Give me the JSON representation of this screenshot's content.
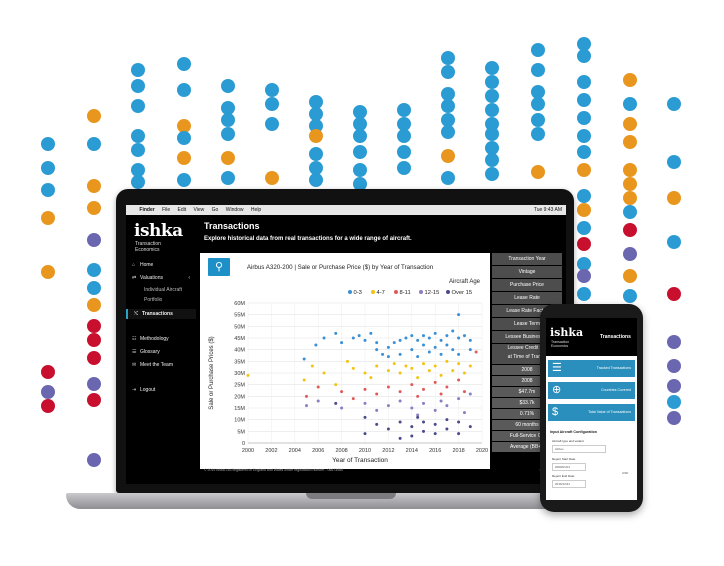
{
  "colors": {
    "age_0_3": "#3b8fd4",
    "age_4_7": "#f2c40f",
    "age_8_11": "#e05a5a",
    "age_12_15": "#8e7cc3",
    "age_over_15": "#4a4a8c",
    "accent": "#2aa3c7",
    "dot_blue": "#2b9bd3",
    "dot_orange": "#e8961e",
    "dot_red": "#c8102e",
    "dot_purple": "#6a67b0"
  },
  "menubar": {
    "apple": "",
    "items": [
      "Finder",
      "File",
      "Edit",
      "View",
      "Go",
      "Window",
      "Help"
    ],
    "clock": "Tue 9:43 AM"
  },
  "sidebar": {
    "logo": "ishka",
    "logo_sub1": "Transaction",
    "logo_sub2": "Economics",
    "items": [
      {
        "label": "Home",
        "icon": "home-icon",
        "glyph": "⌂"
      },
      {
        "label": "Valuations",
        "icon": "valuations-icon",
        "glyph": "⇄",
        "chevron": "‹"
      },
      {
        "label": "Individual Aircraft",
        "sub": true
      },
      {
        "label": "Portfolio",
        "sub": true
      },
      {
        "label": "Transactions",
        "icon": "transactions-icon",
        "glyph": "⤭",
        "active": true
      },
      {
        "label": "Methodology",
        "icon": "methodology-icon",
        "glyph": "☷"
      },
      {
        "label": "Glossary",
        "icon": "glossary-icon",
        "glyph": "☰"
      },
      {
        "label": "Meet the Team",
        "icon": "team-icon",
        "glyph": "✉"
      },
      {
        "label": "Logout",
        "icon": "logout-icon",
        "glyph": "⇥"
      }
    ]
  },
  "page": {
    "title": "Transactions",
    "subtitle": "Explore historical data from real transactions for a wide range of aircraft.",
    "search_glyph": "⚲"
  },
  "filters": [
    "Transaction Year",
    "Vintage",
    "Purchase Price",
    "Lease Rate",
    "Lease Rate Factor",
    "Lease Term",
    "Lessee Business M",
    "Lessee Credit Gu",
    "at Time of Transa"
  ],
  "filter_values": [
    "2008",
    "2008",
    "$47.7m",
    "$33.7k",
    "0.71%",
    "60 months",
    "Full-Service Ca",
    "Average (BB+ t"
  ],
  "footer": {
    "left": "© 2019 Ishka Ltd Registered in England and Wales under registration number - 06673080",
    "right": "staging.ishk"
  },
  "chart_data": {
    "type": "scatter",
    "title": "Airbus A320-200 | Sale or Purchase Price ($) by Year of Transaction",
    "xlabel": "Year of Transaction",
    "ylabel": "Sale or Purchase Prices ($)",
    "xlim": [
      2000,
      2020
    ],
    "ylim": [
      0,
      60
    ],
    "x_ticks": [
      "2000",
      "2002",
      "2004",
      "2006",
      "2008",
      "2010",
      "2012",
      "2014",
      "2016",
      "2018",
      "2020"
    ],
    "y_ticks": [
      "0",
      "5M",
      "10M",
      "15M",
      "20M",
      "25M",
      "30M",
      "35M",
      "40M",
      "45M",
      "50M",
      "55M",
      "60M"
    ],
    "legend_title": "Aircraft Age",
    "legend_position": "top-right",
    "grid": true,
    "series": [
      {
        "name": "0-3",
        "color": "#3b8fd4",
        "points": [
          [
            2004.8,
            36
          ],
          [
            2005.8,
            42
          ],
          [
            2006.5,
            45
          ],
          [
            2007.5,
            47
          ],
          [
            2008,
            43
          ],
          [
            2009,
            45
          ],
          [
            2009.5,
            46
          ],
          [
            2010,
            44
          ],
          [
            2010.5,
            47
          ],
          [
            2011,
            40
          ],
          [
            2011.5,
            38
          ],
          [
            2012,
            41
          ],
          [
            2012.5,
            43
          ],
          [
            2013,
            44
          ],
          [
            2013.5,
            45
          ],
          [
            2014,
            46
          ],
          [
            2014,
            40
          ],
          [
            2014.5,
            44
          ],
          [
            2015,
            46
          ],
          [
            2015,
            42
          ],
          [
            2015.5,
            45
          ],
          [
            2016,
            47
          ],
          [
            2016,
            41
          ],
          [
            2016.5,
            44
          ],
          [
            2017,
            46
          ],
          [
            2017,
            42
          ],
          [
            2017.5,
            48
          ],
          [
            2018,
            55
          ],
          [
            2018,
            45
          ],
          [
            2018,
            38
          ],
          [
            2018.5,
            46
          ],
          [
            2019,
            44
          ],
          [
            2019,
            40
          ],
          [
            2013,
            38
          ],
          [
            2012,
            37
          ],
          [
            2015.5,
            39
          ],
          [
            2016.5,
            38
          ],
          [
            2014.5,
            37
          ],
          [
            2017.5,
            40
          ],
          [
            2011,
            43
          ]
        ]
      },
      {
        "name": "4-7",
        "color": "#f2c40f",
        "points": [
          [
            2000,
            29
          ],
          [
            2004.8,
            27
          ],
          [
            2005.5,
            33
          ],
          [
            2006.5,
            30
          ],
          [
            2007.5,
            25
          ],
          [
            2008.5,
            35
          ],
          [
            2009,
            32
          ],
          [
            2010,
            30
          ],
          [
            2010.5,
            28
          ],
          [
            2011,
            33
          ],
          [
            2012,
            31
          ],
          [
            2012.5,
            34
          ],
          [
            2013,
            30
          ],
          [
            2013.5,
            33
          ],
          [
            2014,
            32
          ],
          [
            2014.5,
            28
          ],
          [
            2015,
            34
          ],
          [
            2015.5,
            31
          ],
          [
            2016,
            33
          ],
          [
            2016.5,
            29
          ],
          [
            2017,
            35
          ],
          [
            2017.5,
            31
          ],
          [
            2018,
            34
          ],
          [
            2018.5,
            30
          ],
          [
            2019,
            33
          ]
        ]
      },
      {
        "name": "8-11",
        "color": "#e05a5a",
        "points": [
          [
            2005,
            20
          ],
          [
            2006,
            24
          ],
          [
            2008,
            22
          ],
          [
            2009,
            19
          ],
          [
            2010,
            23
          ],
          [
            2011,
            21
          ],
          [
            2012,
            24
          ],
          [
            2013,
            22
          ],
          [
            2014,
            25
          ],
          [
            2014.5,
            20
          ],
          [
            2015,
            23
          ],
          [
            2016,
            26
          ],
          [
            2016.5,
            21
          ],
          [
            2017,
            24
          ],
          [
            2018,
            27
          ],
          [
            2018.5,
            22
          ],
          [
            2019.5,
            39
          ]
        ]
      },
      {
        "name": "12-15",
        "color": "#8e7cc3",
        "points": [
          [
            2005,
            16
          ],
          [
            2006,
            18
          ],
          [
            2008,
            15
          ],
          [
            2010,
            17
          ],
          [
            2011,
            14
          ],
          [
            2012,
            16
          ],
          [
            2013,
            18
          ],
          [
            2014,
            15
          ],
          [
            2014.5,
            12
          ],
          [
            2015,
            17
          ],
          [
            2016,
            14
          ],
          [
            2016.5,
            18
          ],
          [
            2017,
            16
          ],
          [
            2018,
            19
          ],
          [
            2019,
            21
          ],
          [
            2018.5,
            13
          ]
        ]
      },
      {
        "name": "Over 15",
        "color": "#4a4a8c",
        "points": [
          [
            2007.5,
            17
          ],
          [
            2010,
            11
          ],
          [
            2010,
            4
          ],
          [
            2011,
            8
          ],
          [
            2012,
            6
          ],
          [
            2013,
            9
          ],
          [
            2013,
            2
          ],
          [
            2014,
            7
          ],
          [
            2014,
            3
          ],
          [
            2015,
            9
          ],
          [
            2015,
            5
          ],
          [
            2016,
            8
          ],
          [
            2016,
            4
          ],
          [
            2017,
            10
          ],
          [
            2017,
            6
          ],
          [
            2018,
            9
          ],
          [
            2018,
            4
          ],
          [
            2019,
            7
          ],
          [
            2014.5,
            11
          ]
        ]
      }
    ]
  },
  "phone": {
    "logo": "ishka",
    "logo_sub1": "Transaction",
    "logo_sub2": "Economics",
    "title": "Transactions",
    "cards": [
      {
        "label": "Tracked Transactions",
        "icon": "list-icon",
        "glyph": "☰"
      },
      {
        "label": "Countries Covered",
        "icon": "globe-icon",
        "glyph": "⊕"
      },
      {
        "label": "Total Value of Transactions",
        "icon": "dollar-icon",
        "glyph": "$"
      }
    ],
    "form_title": "Input Aircraft Configuration",
    "fields": [
      {
        "label": "Aircraft type and variant",
        "value": "Airbus"
      },
      {
        "label": "Report Start Date",
        "value": "2009/01/01"
      },
      {
        "label": "Report End Date",
        "value": "2019/12/31"
      }
    ],
    "side_text": "USD"
  }
}
